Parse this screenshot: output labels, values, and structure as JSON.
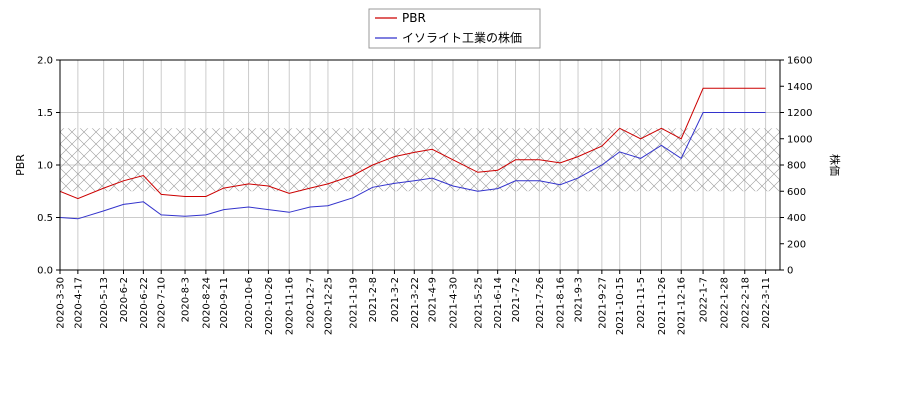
{
  "chart_data": {
    "type": "line",
    "title": "",
    "xlabel": "",
    "ylabel": "PBR",
    "y2label": "株価",
    "ylim": [
      0.0,
      2.0
    ],
    "y2lim": [
      0,
      1600
    ],
    "yticks": [
      "0.0",
      "0.5",
      "1.0",
      "1.5",
      "2.0"
    ],
    "y2ticks": [
      "0",
      "200",
      "400",
      "600",
      "800",
      "1000",
      "1200",
      "1400",
      "1600"
    ],
    "xticks": [
      "2020-3-30",
      "2020-4-17",
      "2020-5-13",
      "2020-6-2",
      "2020-6-22",
      "2020-7-10",
      "2020-8-3",
      "2020-8-24",
      "2020-9-11",
      "2020-10-6",
      "2020-10-26",
      "2020-11-16",
      "2020-12-7",
      "2020-12-25",
      "2021-1-19",
      "2021-2-8",
      "2021-3-2",
      "2021-3-22",
      "2021-4-9",
      "2021-4-30",
      "2021-5-25",
      "2021-6-14",
      "2021-7-2",
      "2021-7-26",
      "2021-8-16",
      "2021-9-3",
      "2021-9-27",
      "2021-10-15",
      "2021-11-5",
      "2021-11-26",
      "2021-12-16",
      "2022-1-7",
      "2022-1-28",
      "2022-2-18",
      "2022-3-11"
    ],
    "grid": true,
    "legend": "top-center",
    "band": {
      "y2_from": 600,
      "y2_to": 1080,
      "pattern": "crosshatch"
    },
    "series": [
      {
        "name": "PBR",
        "axis": "left",
        "color": "#cc0000",
        "x": [
          "2020-3-30",
          "2020-4-17",
          "2020-5-13",
          "2020-6-2",
          "2020-6-22",
          "2020-7-10",
          "2020-8-3",
          "2020-8-24",
          "2020-9-11",
          "2020-10-6",
          "2020-10-26",
          "2020-11-16",
          "2020-12-7",
          "2020-12-25",
          "2021-1-19",
          "2021-2-8",
          "2021-3-2",
          "2021-3-22",
          "2021-4-9",
          "2021-4-30",
          "2021-5-25",
          "2021-6-14",
          "2021-7-2",
          "2021-7-26",
          "2021-8-16",
          "2021-9-3",
          "2021-9-27",
          "2021-10-15",
          "2021-11-5",
          "2021-11-26",
          "2021-12-16",
          "2022-1-7",
          "2022-1-28",
          "2022-2-18",
          "2022-3-11"
        ],
        "values": [
          0.75,
          0.68,
          0.78,
          0.85,
          0.9,
          0.72,
          0.7,
          0.7,
          0.78,
          0.82,
          0.8,
          0.73,
          0.78,
          0.82,
          0.9,
          1.0,
          1.08,
          1.12,
          1.15,
          1.05,
          0.93,
          0.95,
          1.05,
          1.05,
          1.02,
          1.08,
          1.18,
          1.35,
          1.25,
          1.35,
          1.25,
          1.73,
          1.73,
          1.73,
          1.73
        ]
      },
      {
        "name": "イソライト工業の株価",
        "axis": "right",
        "color": "#3333cc",
        "x": [
          "2020-3-30",
          "2020-4-17",
          "2020-5-13",
          "2020-6-2",
          "2020-6-22",
          "2020-7-10",
          "2020-8-3",
          "2020-8-24",
          "2020-9-11",
          "2020-10-6",
          "2020-10-26",
          "2020-11-16",
          "2020-12-7",
          "2020-12-25",
          "2021-1-19",
          "2021-2-8",
          "2021-3-2",
          "2021-3-22",
          "2021-4-9",
          "2021-4-30",
          "2021-5-25",
          "2021-6-14",
          "2021-7-2",
          "2021-7-26",
          "2021-8-16",
          "2021-9-3",
          "2021-9-27",
          "2021-10-15",
          "2021-11-5",
          "2021-11-26",
          "2021-12-16",
          "2022-1-7",
          "2022-1-28",
          "2022-2-18",
          "2022-3-11"
        ],
        "values": [
          400,
          390,
          450,
          500,
          520,
          420,
          410,
          420,
          460,
          480,
          460,
          440,
          480,
          490,
          550,
          630,
          660,
          680,
          700,
          640,
          600,
          620,
          680,
          680,
          650,
          700,
          800,
          900,
          850,
          950,
          850,
          1200,
          1200,
          1200,
          1200
        ]
      }
    ]
  }
}
